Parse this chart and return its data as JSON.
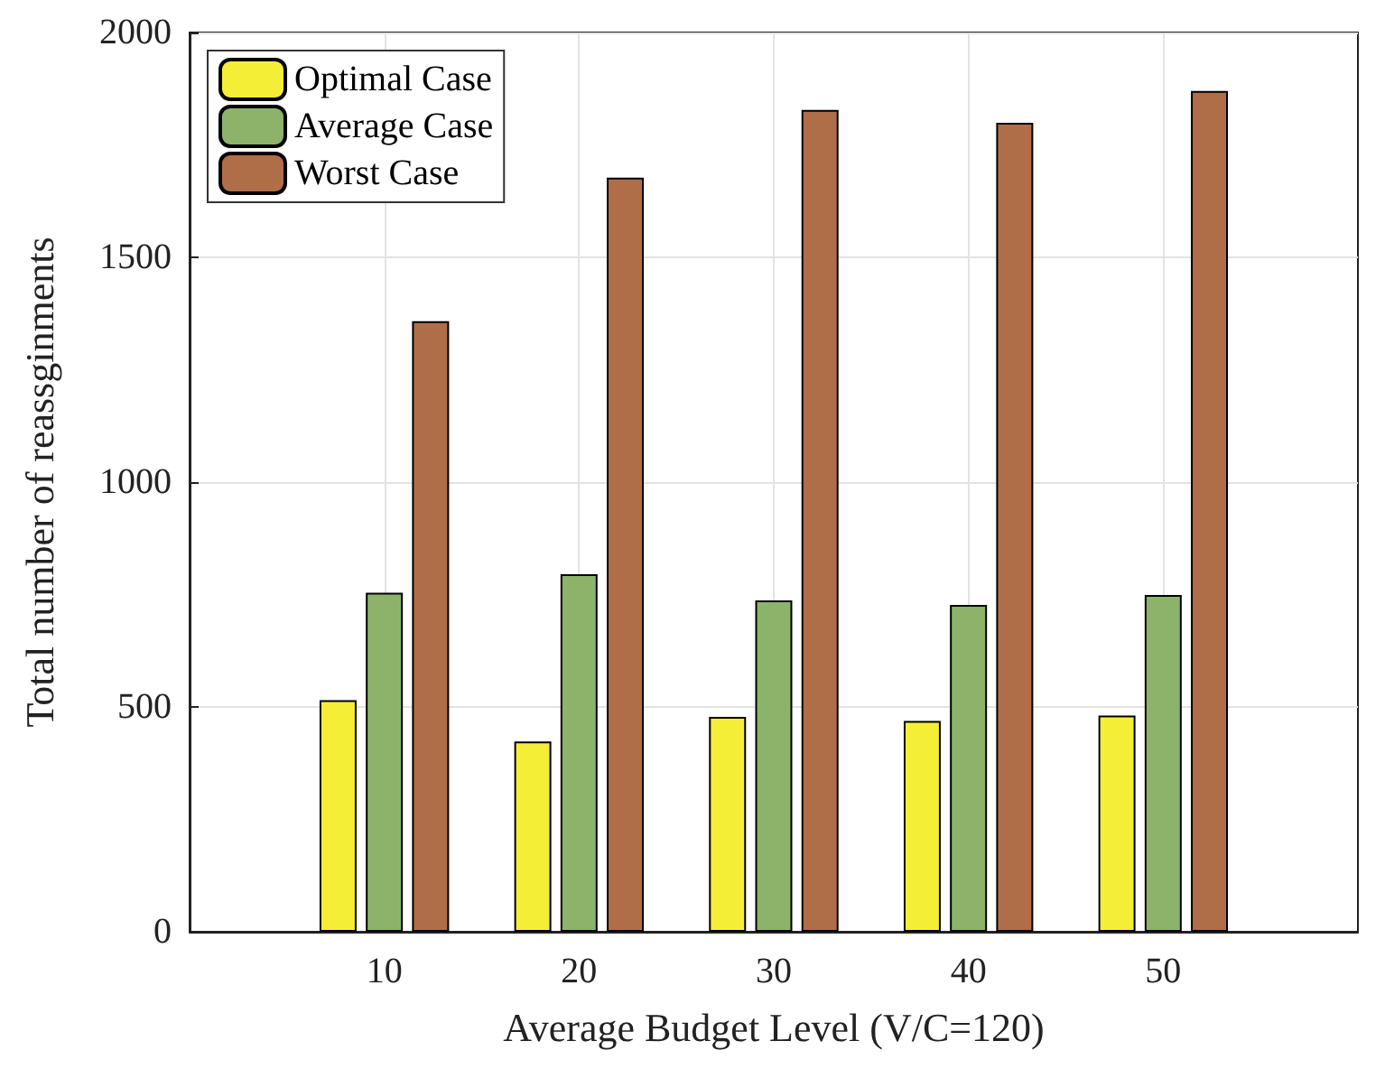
{
  "chart_data": {
    "type": "bar",
    "xlabel": "Average Budget Level (V/C=120)",
    "ylabel": "Total number of reassginments",
    "x": [
      10,
      20,
      30,
      40,
      50
    ],
    "series": [
      {
        "name": "Optimal Case",
        "color": "#f5ee36",
        "values": [
          515,
          423,
          478,
          469,
          481
        ]
      },
      {
        "name": "Average Case",
        "color": "#8db36b",
        "values": [
          754,
          795,
          737,
          727,
          749
        ]
      },
      {
        "name": "Worst Case",
        "color": "#b06e48",
        "values": [
          1358,
          1677,
          1828,
          1799,
          1870
        ]
      }
    ],
    "xlim": [
      0,
      60
    ],
    "xticks": [
      10,
      20,
      30,
      40,
      50
    ],
    "ylim": [
      0,
      2000
    ],
    "yticks": [
      0,
      500,
      1000,
      1500,
      2000
    ],
    "grid": true,
    "legend": "top left"
  }
}
